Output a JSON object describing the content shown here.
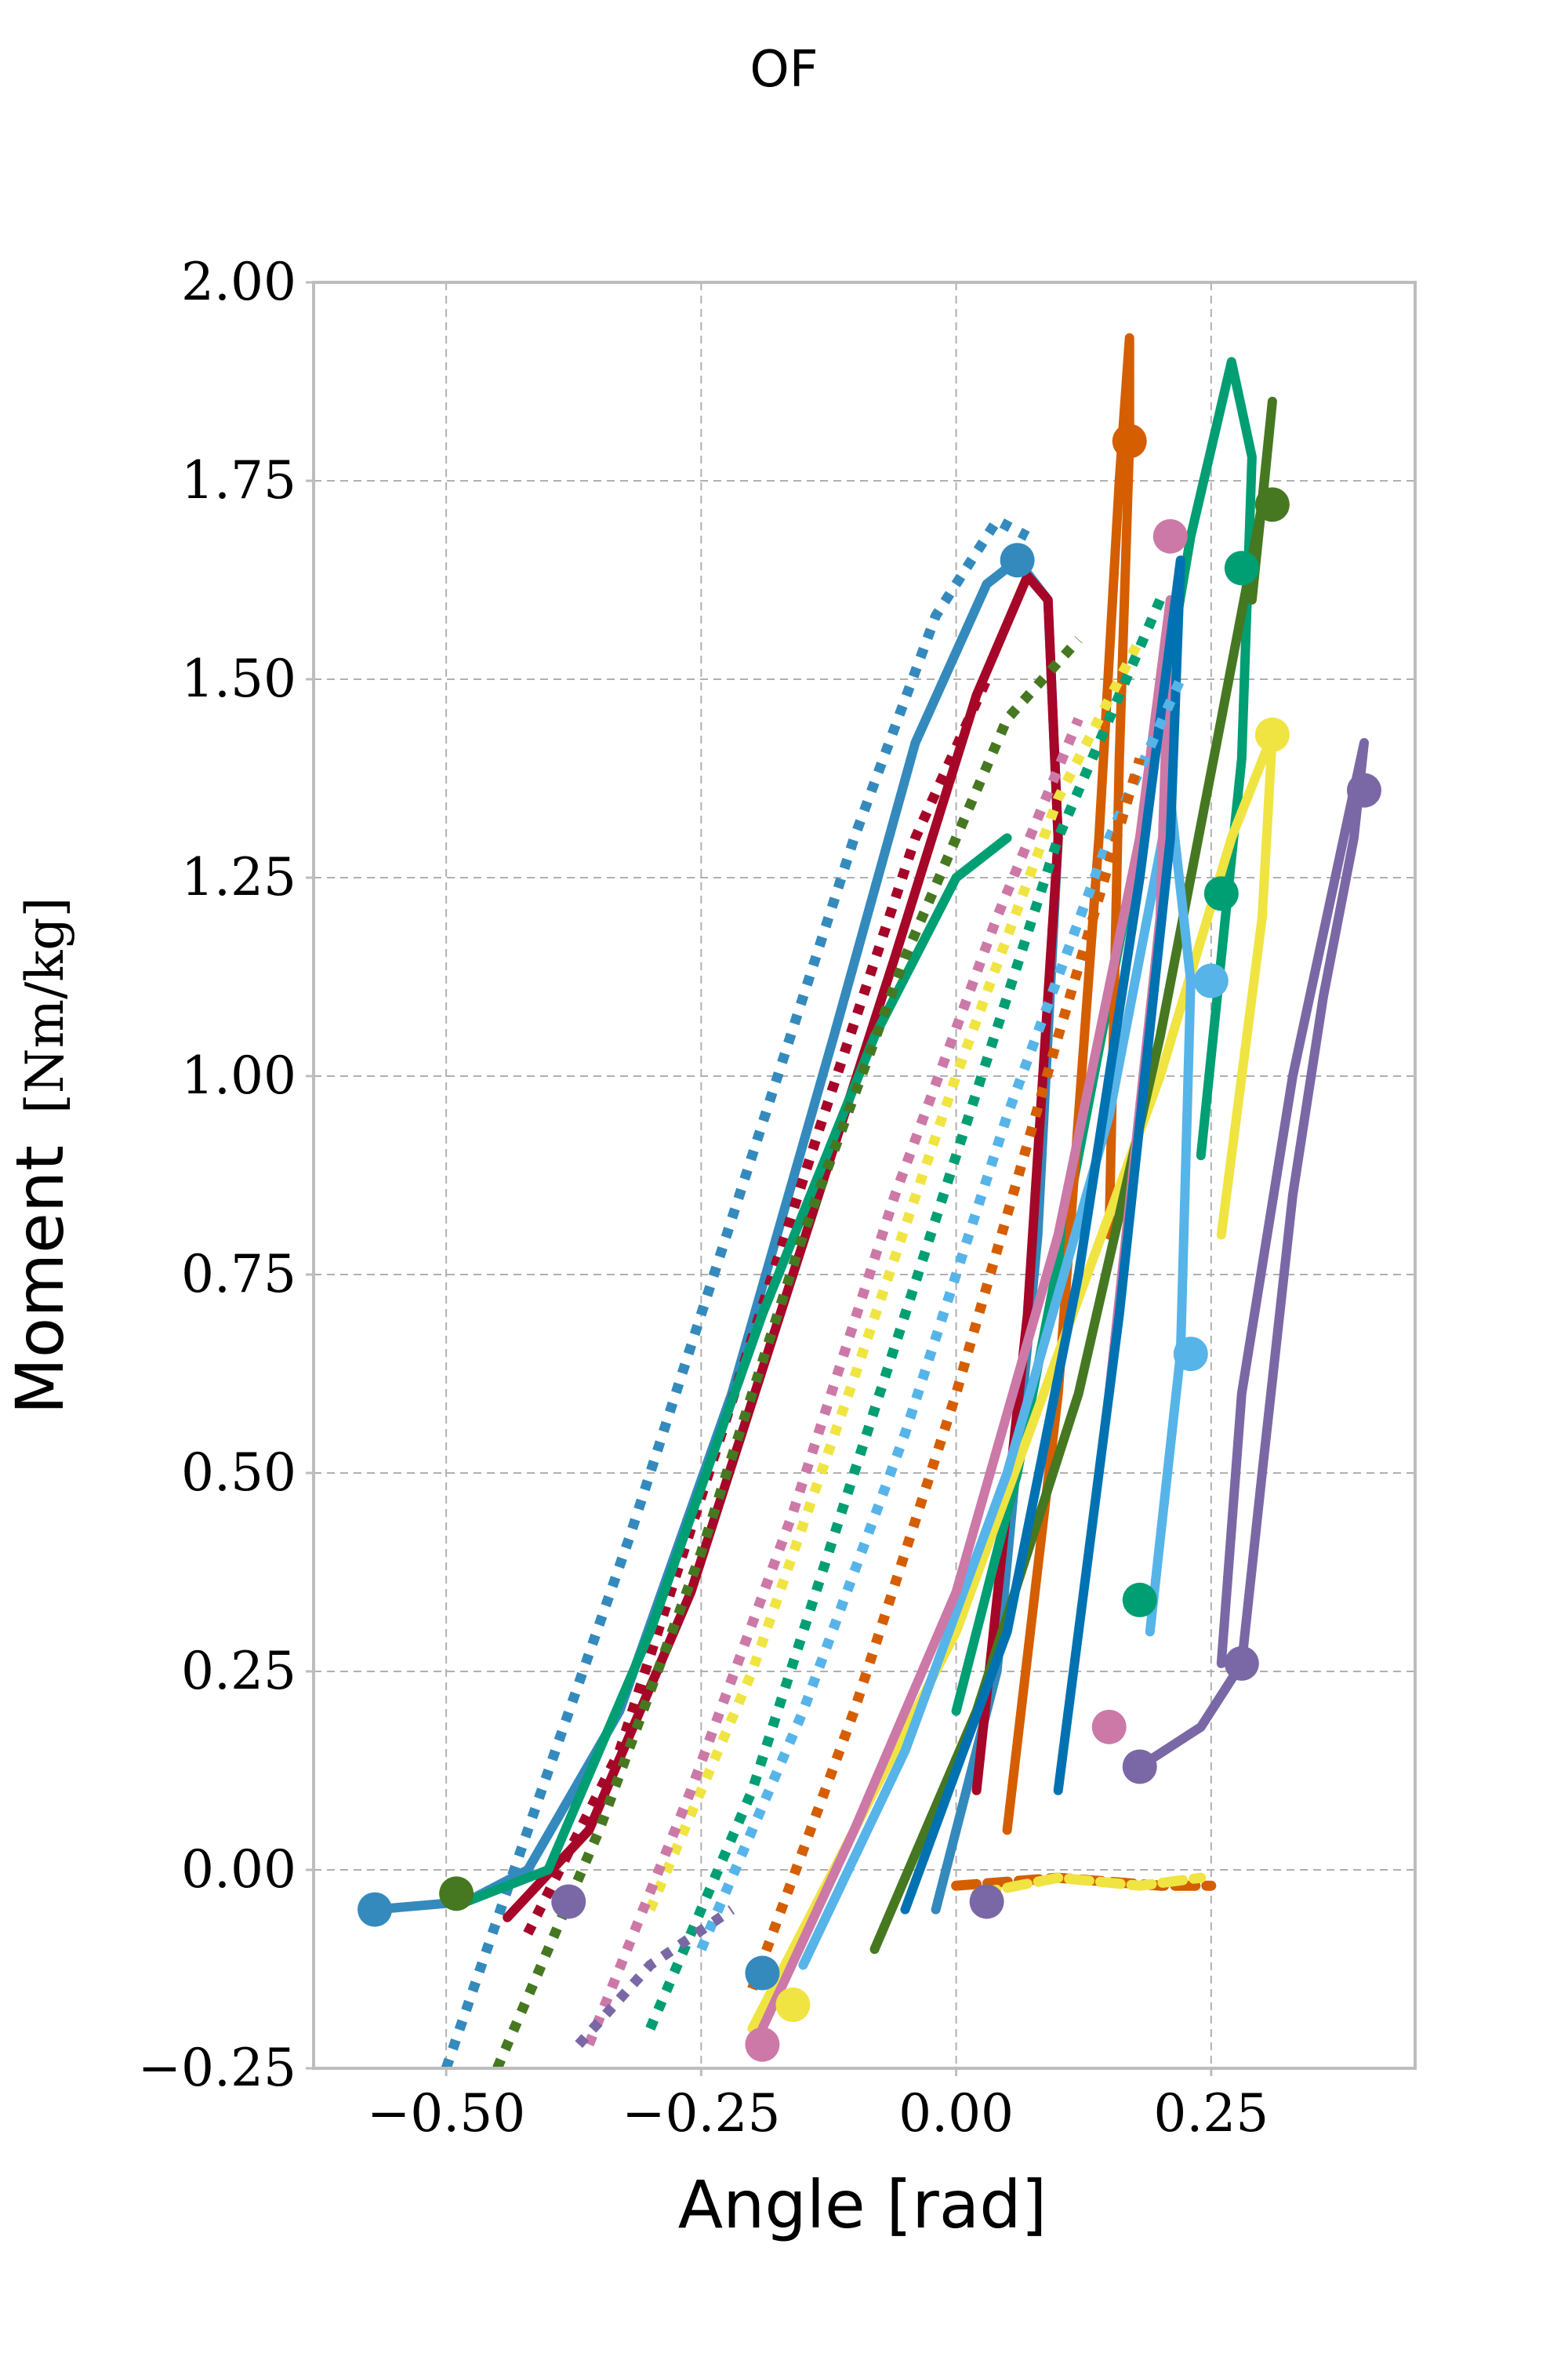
{
  "chart_data": {
    "type": "line",
    "title": "OF",
    "xlabel": "Angle [rad]",
    "ylabel": "Moment",
    "ylabel_unit": "[Nm/kg]",
    "xlim": [
      -0.63,
      0.45
    ],
    "ylim": [
      -0.25,
      2.0
    ],
    "x_ticks": [
      -0.5,
      -0.25,
      0.0,
      0.25
    ],
    "x_tick_labels": [
      "−0.50",
      "−0.25",
      "0.00",
      "0.25"
    ],
    "y_ticks": [
      -0.25,
      0.0,
      0.25,
      0.5,
      0.75,
      1.0,
      1.25,
      1.5,
      1.75,
      2.0
    ],
    "y_tick_labels": [
      "−0.25",
      "0.00",
      "0.25",
      "0.50",
      "0.75",
      "1.00",
      "1.25",
      "1.50",
      "1.75",
      "2.00"
    ],
    "grid": true,
    "legend": "none",
    "palette": [
      "#348ABD",
      "#A60628",
      "#7A68A6",
      "#467821",
      "#D55E00",
      "#CC79A7",
      "#56B4E9",
      "#009E73",
      "#F0E442",
      "#0072B2"
    ],
    "series": [
      {
        "color": "#348ABD",
        "style": "solid",
        "x": [
          -0.57,
          -0.48,
          -0.42,
          -0.33,
          -0.22,
          -0.12,
          -0.04,
          0.03,
          0.06,
          0.09,
          0.1,
          0.08,
          0.04,
          -0.02
        ],
        "y": [
          -0.05,
          -0.04,
          0.0,
          0.2,
          0.6,
          1.05,
          1.42,
          1.62,
          1.65,
          1.6,
          1.3,
          0.8,
          0.25,
          -0.05
        ]
      },
      {
        "color": "#348ABD",
        "style": "dotted",
        "x": [
          -0.5,
          -0.42,
          -0.32,
          -0.2,
          -0.1,
          -0.02,
          0.04,
          0.07
        ],
        "y": [
          -0.25,
          0.05,
          0.42,
          0.9,
          1.3,
          1.58,
          1.7,
          1.68
        ]
      },
      {
        "color": "#A60628",
        "style": "solid",
        "x": [
          -0.44,
          -0.36,
          -0.26,
          -0.16,
          -0.06,
          0.02,
          0.07,
          0.09,
          0.1,
          0.07,
          0.02
        ],
        "y": [
          -0.06,
          0.05,
          0.35,
          0.75,
          1.15,
          1.48,
          1.63,
          1.6,
          1.3,
          0.7,
          0.1
        ]
      },
      {
        "color": "#A60628",
        "style": "dotted",
        "x": [
          -0.42,
          -0.33,
          -0.23,
          -0.13,
          -0.04,
          0.03
        ],
        "y": [
          -0.08,
          0.15,
          0.55,
          0.95,
          1.3,
          1.5
        ]
      },
      {
        "color": "#009E73",
        "style": "solid",
        "x": [
          -0.48,
          -0.4,
          -0.3,
          -0.19,
          -0.08,
          0.0,
          0.05
        ],
        "y": [
          -0.04,
          0.0,
          0.3,
          0.7,
          1.05,
          1.25,
          1.3
        ]
      },
      {
        "color": "#009E73",
        "style": "solid",
        "x": [
          0.0,
          0.06,
          0.12,
          0.18,
          0.23,
          0.27,
          0.29,
          0.28,
          0.24
        ],
        "y": [
          0.2,
          0.5,
          0.9,
          1.3,
          1.68,
          1.9,
          1.78,
          1.4,
          0.9
        ]
      },
      {
        "color": "#D55E00",
        "style": "solid",
        "x": [
          0.05,
          0.1,
          0.14,
          0.16,
          0.17,
          0.17,
          0.16,
          0.15
        ],
        "y": [
          0.05,
          0.6,
          1.3,
          1.75,
          1.93,
          1.8,
          1.4,
          0.8
        ]
      },
      {
        "color": "#D55E00",
        "style": "dashed",
        "x": [
          0.0,
          0.1,
          0.2,
          0.25
        ],
        "y": [
          -0.02,
          -0.01,
          -0.02,
          -0.02
        ]
      },
      {
        "color": "#7A68A6",
        "style": "solid",
        "x": [
          0.18,
          0.24,
          0.28,
          0.3,
          0.33,
          0.36,
          0.39,
          0.4,
          0.39,
          0.33,
          0.28,
          0.26
        ],
        "y": [
          0.13,
          0.18,
          0.26,
          0.5,
          0.85,
          1.1,
          1.3,
          1.42,
          1.36,
          1.0,
          0.6,
          0.26
        ]
      },
      {
        "color": "#F0E442",
        "style": "solid",
        "x": [
          -0.2,
          -0.1,
          0.0,
          0.1,
          0.2,
          0.27,
          0.31,
          0.3,
          0.26
        ],
        "y": [
          -0.2,
          0.05,
          0.3,
          0.65,
          1.0,
          1.3,
          1.43,
          1.2,
          0.8
        ]
      },
      {
        "color": "#467821",
        "style": "solid",
        "x": [
          -0.08,
          0.02,
          0.12,
          0.2,
          0.26,
          0.3,
          0.31,
          0.29
        ],
        "y": [
          -0.1,
          0.2,
          0.6,
          1.05,
          1.45,
          1.72,
          1.85,
          1.6
        ]
      },
      {
        "color": "#56B4E9",
        "style": "solid",
        "x": [
          -0.15,
          -0.05,
          0.05,
          0.15,
          0.21,
          0.23,
          0.22,
          0.19
        ],
        "y": [
          -0.12,
          0.15,
          0.5,
          0.95,
          1.35,
          1.12,
          0.65,
          0.3
        ]
      },
      {
        "color": "#CC79A7",
        "style": "solid",
        "x": [
          -0.19,
          -0.1,
          0.0,
          0.1,
          0.18,
          0.21,
          0.2,
          0.15
        ],
        "y": [
          -0.2,
          0.05,
          0.35,
          0.8,
          1.3,
          1.6,
          1.2,
          0.6
        ]
      },
      {
        "color": "#0072B2",
        "style": "solid",
        "x": [
          -0.05,
          0.05,
          0.12,
          0.18,
          0.22,
          0.21,
          0.16,
          0.1
        ],
        "y": [
          -0.05,
          0.3,
          0.75,
          1.25,
          1.65,
          1.3,
          0.7,
          0.1
        ]
      },
      {
        "color": "#F0E442",
        "style": "dotted",
        "x": [
          -0.3,
          -0.2,
          -0.1,
          0.0,
          0.1,
          0.18
        ],
        "y": [
          -0.05,
          0.25,
          0.62,
          1.0,
          1.35,
          1.55
        ]
      },
      {
        "color": "#467821",
        "style": "dotted",
        "x": [
          -0.45,
          -0.35,
          -0.25,
          -0.15,
          -0.05,
          0.05,
          0.12
        ],
        "y": [
          -0.25,
          0.05,
          0.4,
          0.8,
          1.15,
          1.45,
          1.55
        ]
      },
      {
        "color": "#CC79A7",
        "style": "dotted",
        "x": [
          -0.36,
          -0.26,
          -0.16,
          -0.06,
          0.04,
          0.12
        ],
        "y": [
          -0.22,
          0.1,
          0.45,
          0.85,
          1.2,
          1.45
        ]
      },
      {
        "color": "#009E73",
        "style": "dotted",
        "x": [
          -0.3,
          -0.2,
          -0.1,
          0.0,
          0.1,
          0.2
        ],
        "y": [
          -0.2,
          0.1,
          0.5,
          0.9,
          1.3,
          1.6
        ]
      },
      {
        "color": "#56B4E9",
        "style": "dotted",
        "x": [
          -0.25,
          -0.15,
          -0.05,
          0.05,
          0.15,
          0.22
        ],
        "y": [
          -0.1,
          0.2,
          0.55,
          0.95,
          1.3,
          1.5
        ]
      },
      {
        "color": "#D55E00",
        "style": "dotted",
        "x": [
          -0.2,
          -0.1,
          0.0,
          0.1,
          0.18
        ],
        "y": [
          -0.15,
          0.2,
          0.6,
          1.05,
          1.4
        ]
      },
      {
        "color": "#7A68A6",
        "style": "dotted",
        "x": [
          -0.37,
          -0.3,
          -0.22
        ],
        "y": [
          -0.22,
          -0.12,
          -0.05
        ]
      },
      {
        "color": "#F0E442",
        "style": "dashed",
        "x": [
          0.02,
          0.1,
          0.18,
          0.24
        ],
        "y": [
          -0.03,
          -0.01,
          -0.02,
          -0.01
        ]
      }
    ],
    "markers": [
      {
        "x": -0.57,
        "y": -0.05,
        "color": "#348ABD"
      },
      {
        "x": -0.49,
        "y": -0.03,
        "color": "#467821"
      },
      {
        "x": -0.38,
        "y": -0.04,
        "color": "#7A68A6"
      },
      {
        "x": 0.06,
        "y": 1.65,
        "color": "#348ABD"
      },
      {
        "x": 0.17,
        "y": 1.8,
        "color": "#D55E00"
      },
      {
        "x": 0.31,
        "y": 1.72,
        "color": "#467821"
      },
      {
        "x": 0.28,
        "y": 1.64,
        "color": "#009E73"
      },
      {
        "x": 0.31,
        "y": 1.43,
        "color": "#F0E442"
      },
      {
        "x": 0.4,
        "y": 1.36,
        "color": "#7A68A6"
      },
      {
        "x": 0.26,
        "y": 1.23,
        "color": "#009E73"
      },
      {
        "x": 0.25,
        "y": 1.12,
        "color": "#56B4E9"
      },
      {
        "x": 0.23,
        "y": 0.65,
        "color": "#56B4E9"
      },
      {
        "x": 0.18,
        "y": 0.34,
        "color": "#009E73"
      },
      {
        "x": 0.28,
        "y": 0.26,
        "color": "#7A68A6"
      },
      {
        "x": 0.18,
        "y": 0.13,
        "color": "#7A68A6"
      },
      {
        "x": 0.15,
        "y": 0.18,
        "color": "#CC79A7"
      },
      {
        "x": 0.03,
        "y": -0.04,
        "color": "#7A68A6"
      },
      {
        "x": -0.19,
        "y": -0.13,
        "color": "#348ABD"
      },
      {
        "x": -0.19,
        "y": -0.22,
        "color": "#CC79A7"
      },
      {
        "x": -0.16,
        "y": -0.17,
        "color": "#F0E442"
      },
      {
        "x": 0.21,
        "y": 1.68,
        "color": "#CC79A7"
      }
    ]
  }
}
